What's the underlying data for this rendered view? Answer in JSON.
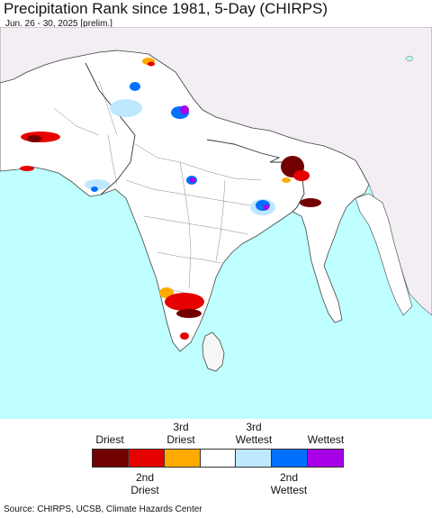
{
  "header": {
    "title": "Precipitation Rank since 1981, 5-Day (CHIRPS)",
    "subtitle": "Jun. 26 - 30, 2025 [prelim.]"
  },
  "map": {
    "ocean_color": "#bfffff",
    "land_color": "#ffffff",
    "outside_color": "#f3eef3",
    "border_color": "#555555"
  },
  "legend": {
    "top_labels": [
      {
        "line1": "Driest",
        "line2": ""
      },
      {
        "line1": "3rd",
        "line2": "Driest"
      },
      {
        "line1": "3rd",
        "line2": "Wettest"
      },
      {
        "line1": "Wettest",
        "line2": ""
      }
    ],
    "bottom_labels": [
      {
        "line1": "2nd",
        "line2": "Driest"
      },
      {
        "line1": "2nd",
        "line2": "Wettest"
      }
    ],
    "colors": [
      "#730000",
      "#e60000",
      "#ffaa00",
      "#ffffff",
      "#bee8ff",
      "#0070ff",
      "#a800e6"
    ]
  },
  "footer": {
    "source": "Source: CHIRPS, UCSB, Climate Hazards Center"
  }
}
